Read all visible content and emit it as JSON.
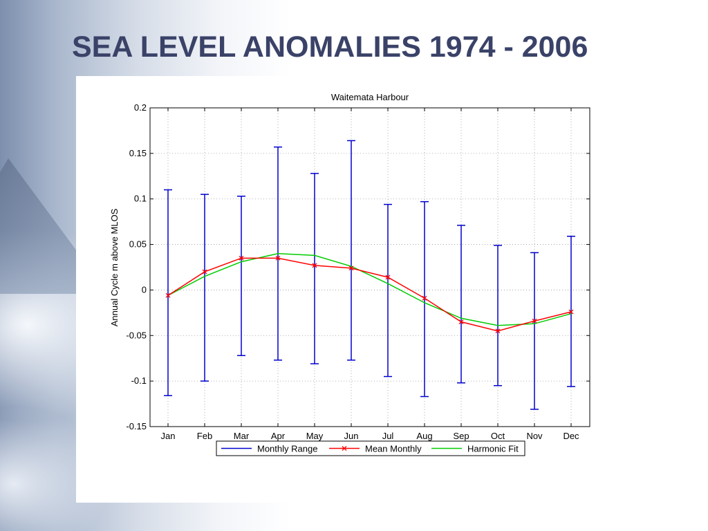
{
  "slide": {
    "title": "SEA LEVEL ANOMALIES 1974 - 2006"
  },
  "colors": {
    "title": "#3a4268",
    "range": "#0000cc",
    "mean": "#ff0000",
    "fit": "#00cc00"
  },
  "chart_data": {
    "type": "line",
    "title": "Waitemata Harbour",
    "xlabel": "",
    "ylabel": "Annual Cycle m above MLOS",
    "categories": [
      "Jan",
      "Feb",
      "Mar",
      "Apr",
      "May",
      "Jun",
      "Jul",
      "Aug",
      "Sep",
      "Oct",
      "Nov",
      "Dec"
    ],
    "ylim": [
      -0.15,
      0.2
    ],
    "yticks": [
      0.2,
      0.15,
      0.1,
      0.05,
      0,
      -0.05,
      -0.1,
      -0.15
    ],
    "ytick_labels": [
      "0.2",
      "0.15",
      "0.1",
      "0.05",
      "0",
      "-0.05",
      "-0.1",
      "-0.15"
    ],
    "grid": true,
    "legend_position": "bottom",
    "series": [
      {
        "name": "Monthly Range",
        "kind": "errorbar",
        "low": [
          -0.116,
          -0.1,
          -0.072,
          -0.077,
          -0.081,
          -0.077,
          -0.095,
          -0.117,
          -0.102,
          -0.105,
          -0.131,
          -0.106
        ],
        "high": [
          0.11,
          0.105,
          0.103,
          0.157,
          0.128,
          0.164,
          0.094,
          0.097,
          0.071,
          0.049,
          0.041,
          0.059
        ]
      },
      {
        "name": "Mean Monthly",
        "kind": "line-marker",
        "values": [
          -0.006,
          0.02,
          0.035,
          0.035,
          0.027,
          0.024,
          0.014,
          -0.009,
          -0.035,
          -0.045,
          -0.034,
          -0.024
        ]
      },
      {
        "name": "Harmonic Fit",
        "kind": "line",
        "values": [
          -0.006,
          0.015,
          0.031,
          0.04,
          0.038,
          0.026,
          0.007,
          -0.014,
          -0.031,
          -0.039,
          -0.037,
          -0.026
        ]
      }
    ]
  }
}
